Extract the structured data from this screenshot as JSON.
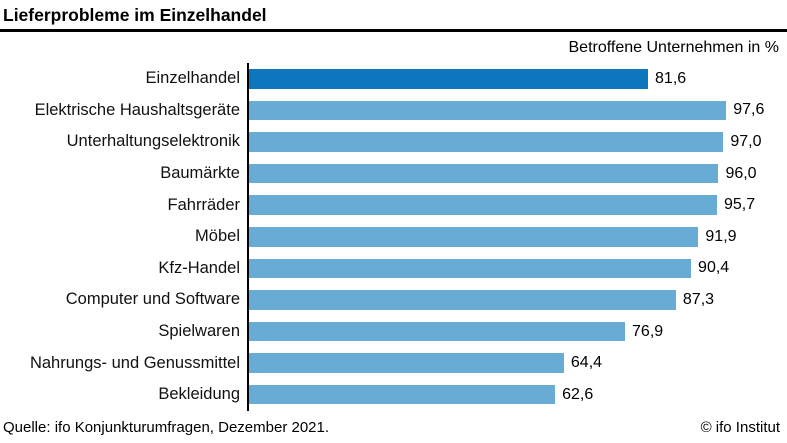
{
  "header": {
    "title": "Lieferprobleme im Einzelhandel"
  },
  "subtitle": "Betroffene Unternehmen in %",
  "footer": {
    "source": "Quelle: ifo Konjunkturumfragen, Dezember 2021.",
    "copyright": "© ifo Institut"
  },
  "colors": {
    "highlight_bar": "#0d76bc",
    "default_bar": "#68abd5",
    "axis": "#000000",
    "title_rule": "#000000"
  },
  "chart_data": {
    "type": "bar",
    "orientation": "horizontal",
    "title": "Lieferprobleme im Einzelhandel",
    "subtitle": "Betroffene Unternehmen in %",
    "categories": [
      "Einzelhandel",
      "Elektrische Haushaltsgeräte",
      "Unterhaltungselektronik",
      "Baumärkte",
      "Fahrräder",
      "Möbel",
      "Kfz-Handel",
      "Computer und Software",
      "Spielwaren",
      "Nahrungs- und Genussmittel",
      "Bekleidung"
    ],
    "values": [
      81.6,
      97.6,
      97.0,
      96.0,
      95.7,
      91.9,
      90.4,
      87.3,
      76.9,
      64.4,
      62.6
    ],
    "value_labels": [
      "81,6",
      "97,6",
      "97,0",
      "96,0",
      "95,7",
      "91,9",
      "90,4",
      "87,3",
      "76,9",
      "64,4",
      "62,6"
    ],
    "highlight_index": 0,
    "xlim": [
      0,
      100
    ],
    "xlabel": "",
    "ylabel": "",
    "grid": false,
    "legend": false,
    "value_labels_position": "end-of-bar"
  }
}
